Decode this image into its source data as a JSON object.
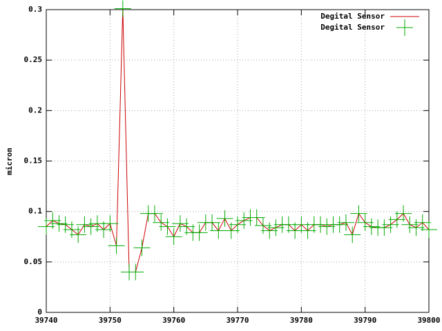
{
  "chart_data": {
    "type": "line",
    "ylabel": "micron",
    "x": [
      39740,
      39741,
      39742,
      39743,
      39744,
      39745,
      39746,
      39747,
      39748,
      39749,
      39750,
      39751,
      39752,
      39753,
      39754,
      39755,
      39756,
      39757,
      39758,
      39759,
      39760,
      39761,
      39762,
      39763,
      39764,
      39765,
      39766,
      39767,
      39768,
      39769,
      39770,
      39771,
      39772,
      39773,
      39774,
      39775,
      39776,
      39777,
      39778,
      39779,
      39780,
      39781,
      39782,
      39783,
      39784,
      39785,
      39786,
      39787,
      39788,
      39789,
      39790,
      39791,
      39792,
      39793,
      39794,
      39795,
      39796,
      39797,
      39798,
      39799,
      39800
    ],
    "series": [
      {
        "name": "Degital Sensor",
        "color": "#cc0000",
        "style": "line",
        "values": [
          0.085,
          0.091,
          0.088,
          0.087,
          0.082,
          0.077,
          0.087,
          0.085,
          0.088,
          0.082,
          0.088,
          0.066,
          0.301,
          0.04,
          0.04,
          0.064,
          0.098,
          0.098,
          0.089,
          0.085,
          0.075,
          0.088,
          0.085,
          0.079,
          0.079,
          0.089,
          0.089,
          0.081,
          0.093,
          0.081,
          0.087,
          0.091,
          0.094,
          0.094,
          0.086,
          0.081,
          0.084,
          0.087,
          0.087,
          0.081,
          0.087,
          0.081,
          0.087,
          0.087,
          0.085,
          0.087,
          0.087,
          0.089,
          0.077,
          0.098,
          0.089,
          0.085,
          0.084,
          0.084,
          0.087,
          0.092,
          0.098,
          0.087,
          0.084,
          0.089,
          0.082
        ]
      },
      {
        "name": "Degital Sensor",
        "color": "#00aa00",
        "style": "points",
        "values": [
          0.085,
          0.091,
          0.088,
          0.087,
          0.082,
          0.077,
          0.087,
          0.085,
          0.088,
          0.082,
          0.088,
          0.066,
          0.301,
          0.04,
          0.04,
          0.064,
          0.098,
          0.098,
          0.089,
          0.085,
          0.075,
          0.088,
          0.085,
          0.079,
          0.079,
          0.089,
          0.089,
          0.081,
          0.093,
          0.081,
          0.087,
          0.091,
          0.094,
          0.094,
          0.086,
          0.081,
          0.084,
          0.087,
          0.087,
          0.081,
          0.087,
          0.081,
          0.087,
          0.087,
          0.085,
          0.087,
          0.087,
          0.089,
          0.077,
          0.098,
          0.089,
          0.085,
          0.084,
          0.084,
          0.087,
          0.092,
          0.098,
          0.087,
          0.084,
          0.089,
          0.082
        ]
      }
    ],
    "xlim": [
      39740,
      39800
    ],
    "xticks": [
      39740,
      39750,
      39760,
      39770,
      39780,
      39790,
      39800
    ],
    "ylim": [
      0,
      0.3
    ],
    "yticks": [
      0,
      0.05,
      0.1,
      0.15,
      0.2,
      0.25,
      0.3
    ],
    "grid": true,
    "legend": "top-right"
  }
}
